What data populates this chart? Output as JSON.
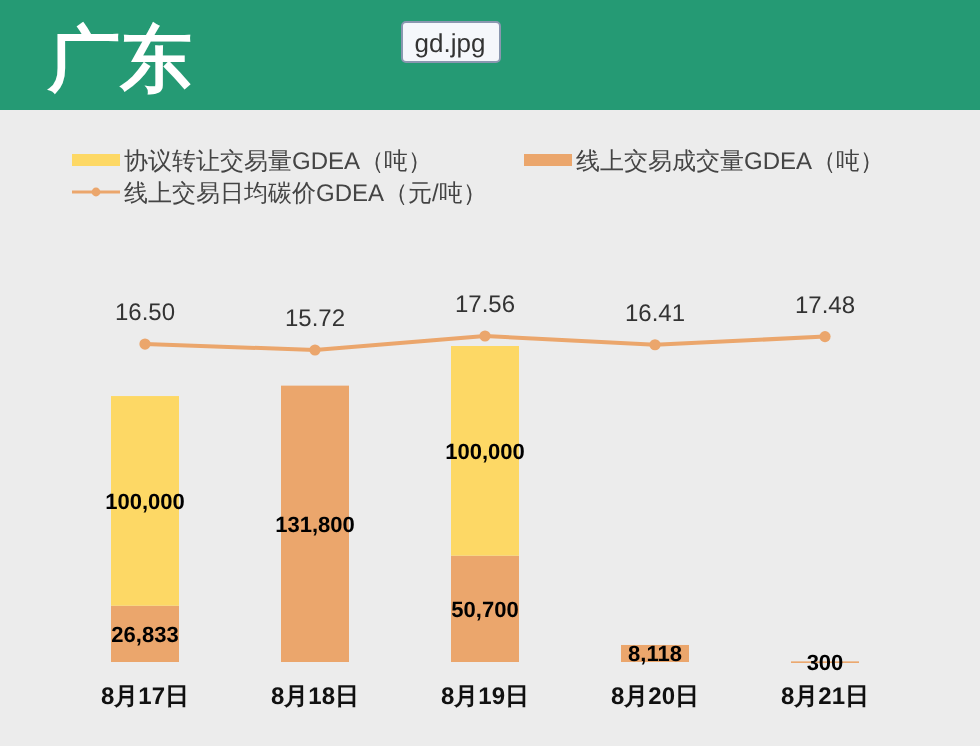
{
  "chart_data": {
    "type": "bar",
    "title": "广东",
    "annotations": [
      "gd.jpg"
    ],
    "stacked": true,
    "legend": "top",
    "marker": "circle",
    "categories": [
      "8月17日",
      "8月18日",
      "8月19日",
      "8月20日",
      "8月21日"
    ],
    "series": [
      {
        "name": "线上交易成交量GDEA（吨）",
        "color": "#eba66c",
        "values": [
          26833,
          131800,
          50700,
          8118,
          300
        ],
        "value_labels": [
          "26,833",
          "131,800",
          "50,700",
          "8,118",
          "300"
        ]
      },
      {
        "name": "协议转让交易量GDEA（吨）",
        "color": "#fdd865",
        "values": [
          100000,
          null,
          100000,
          null,
          null
        ],
        "value_labels": [
          "100,000",
          null,
          "100,000",
          null,
          null
        ]
      },
      {
        "name": "线上交易日均碳价GDEA（元/吨）",
        "type": "line",
        "axis": "y2",
        "color": "#eba66c",
        "values": [
          16.5,
          15.72,
          17.56,
          16.41,
          17.48
        ],
        "value_labels": [
          "16.50",
          "15.72",
          "17.56",
          "16.41",
          "17.48"
        ]
      }
    ]
  }
}
